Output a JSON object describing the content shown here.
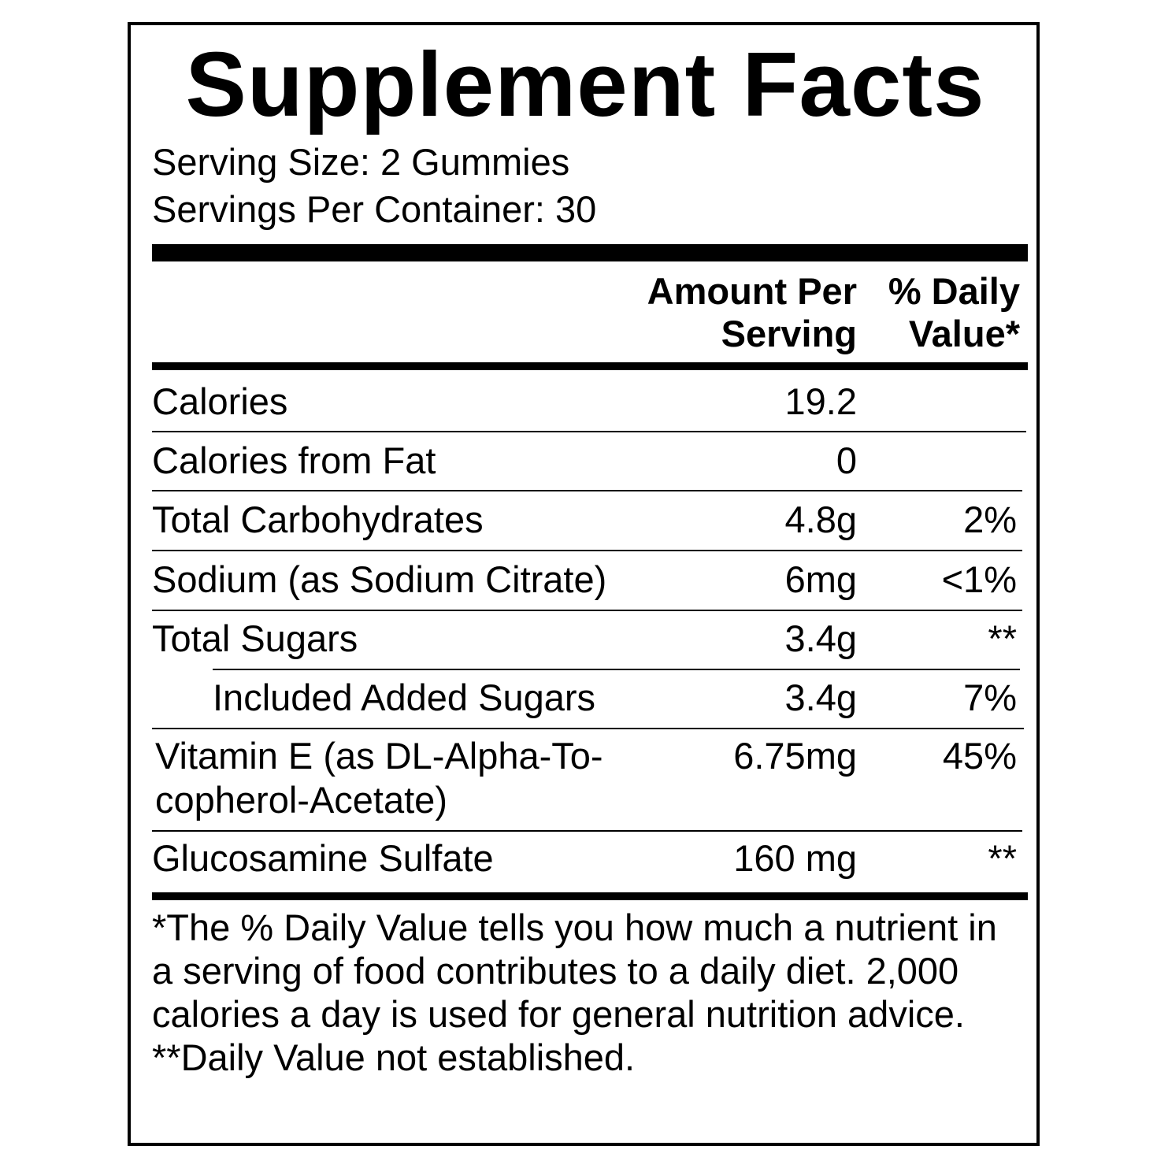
{
  "title": "Supplement Facts",
  "serving_size": "Serving Size: 2 Gummies",
  "servings_per_container": "Servings Per Container: 30",
  "header": {
    "amount_line1": "Amount Per",
    "amount_line2": "Serving",
    "dv_line1": "% Daily",
    "dv_line2": "Value*"
  },
  "rows": [
    {
      "name": "Calories",
      "amount": "19.2",
      "dv": ""
    },
    {
      "name": "Calories from Fat",
      "amount": "0",
      "dv": ""
    },
    {
      "name": "Total Carbohydrates",
      "amount": "4.8g",
      "dv": "2%"
    },
    {
      "name": "Sodium (as Sodium Citrate)",
      "amount": "6mg",
      "dv": "<1%"
    },
    {
      "name": "Total Sugars",
      "amount": "3.4g",
      "dv": "**"
    },
    {
      "name": "Included Added Sugars",
      "amount": "3.4g",
      "dv": "7%"
    },
    {
      "name": "Vitamin E (as DL-Alpha-To-",
      "name2": "copherol-Acetate)",
      "amount": "6.75mg",
      "dv": "45%"
    },
    {
      "name": "Glucosamine Sulfate",
      "amount": "160 mg",
      "dv": "**"
    }
  ],
  "footnote": {
    "dv_note": "*The % Daily Value tells you how much a nutrient in a serving of food contributes to a daily diet. 2,000 calories a day is used for general nutrition advice.",
    "not_established": "**Daily Value not established."
  }
}
